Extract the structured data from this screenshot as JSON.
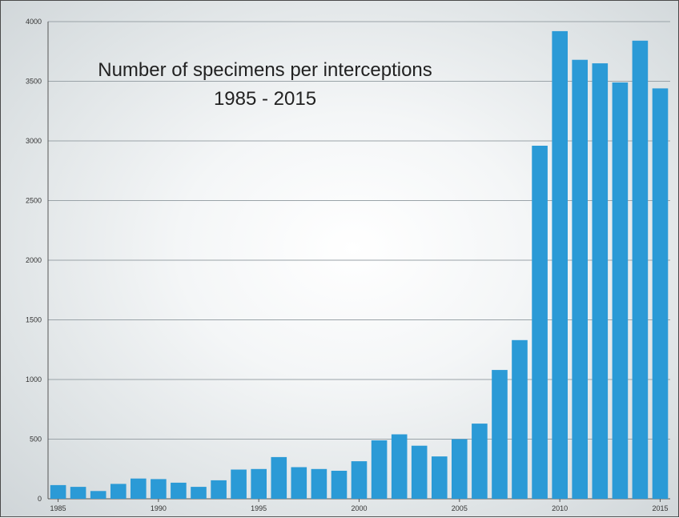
{
  "colors": {
    "bar": "#2b9ad6",
    "gridline": "#9aa3a8",
    "axis": "#555555"
  },
  "chart_data": {
    "type": "bar",
    "title_lines": [
      "Number of specimens per interceptions",
      "1985 - 2015"
    ],
    "xlabel": "",
    "ylabel": "",
    "ylim": [
      0,
      4000
    ],
    "grid": true,
    "y_ticks": [
      "0",
      "500",
      "1000",
      "1500",
      "2000",
      "2500",
      "3000",
      "3500",
      "4000"
    ],
    "x_tick_labels": [
      "1985",
      "1990",
      "1995",
      "2000",
      "2005",
      "2010",
      "2015"
    ],
    "categories": [
      "1985",
      "1986",
      "1987",
      "1988",
      "1989",
      "1990",
      "1991",
      "1992",
      "1993",
      "1994",
      "1995",
      "1996",
      "1997",
      "1998",
      "1999",
      "2000",
      "2001",
      "2002",
      "2003",
      "2004",
      "2005",
      "2006",
      "2007",
      "2008",
      "2009",
      "2010",
      "2011",
      "2012",
      "2013",
      "2014",
      "2015"
    ],
    "values": [
      115,
      100,
      65,
      125,
      170,
      165,
      135,
      100,
      155,
      245,
      250,
      350,
      265,
      250,
      235,
      315,
      490,
      540,
      445,
      355,
      500,
      630,
      1080,
      1330,
      2960,
      3920,
      3680,
      3650,
      3490,
      3840,
      3440
    ]
  }
}
